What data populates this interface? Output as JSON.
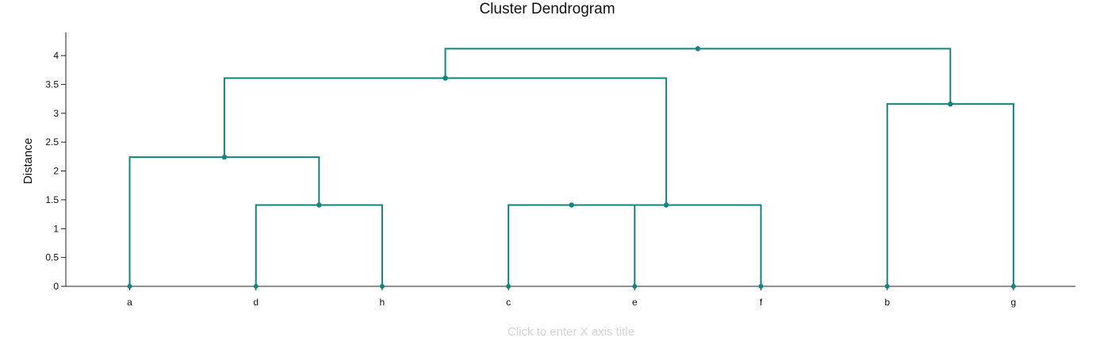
{
  "chart_data": {
    "type": "dendrogram",
    "title": "Cluster Dendrogram",
    "ylabel": "Distance",
    "xlabel_placeholder": "Click to enter X axis title",
    "ylim": [
      0,
      4.4
    ],
    "yticks": [
      0,
      0.5,
      1,
      1.5,
      2,
      2.5,
      3,
      3.5,
      4
    ],
    "ytick_labels": [
      "0",
      "0.5",
      "1",
      "1.5",
      "2",
      "2.5",
      "3",
      "3.5",
      "4"
    ],
    "grid": false,
    "leaves": [
      "a",
      "d",
      "h",
      "c",
      "e",
      "f",
      "b",
      "g"
    ],
    "merges": [
      {
        "id": "m1",
        "children": [
          "d",
          "h"
        ],
        "height": 1.41
      },
      {
        "id": "m2",
        "children": [
          "c",
          "e"
        ],
        "height": 1.41
      },
      {
        "id": "m3",
        "children": [
          "m2",
          "f"
        ],
        "height": 1.41
      },
      {
        "id": "m4",
        "children": [
          "a",
          "m1"
        ],
        "height": 2.24
      },
      {
        "id": "m5",
        "children": [
          "b",
          "g"
        ],
        "height": 3.16
      },
      {
        "id": "m6",
        "children": [
          "m4",
          "m3"
        ],
        "height": 3.61
      },
      {
        "id": "m7",
        "children": [
          "m6",
          "m5"
        ],
        "height": 4.12
      }
    ],
    "color": "#12837e"
  }
}
